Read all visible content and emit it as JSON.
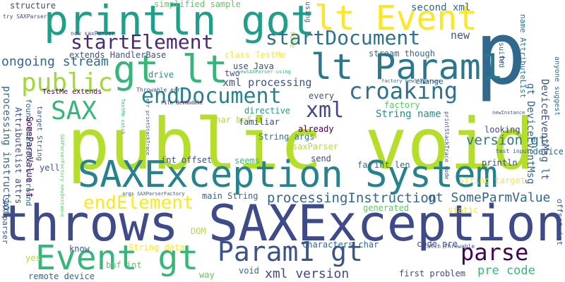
{
  "words": [
    {
      "text": "public void",
      "color": "#b5de2b"
    },
    {
      "text": "throws SAXException",
      "color": "#3e4a89"
    },
    {
      "text": "SAXException System",
      "color": "#26828e"
    },
    {
      "text": "p",
      "color": "#31688e"
    },
    {
      "text": "println got",
      "color": "#1f9e89"
    },
    {
      "text": "lt Event",
      "color": "#fde725"
    },
    {
      "text": "gt lt",
      "color": "#35b779"
    },
    {
      "text": "lt Param1",
      "color": "#2a788e"
    },
    {
      "text": "Event gt",
      "color": "#35b779"
    },
    {
      "text": "Param1 gt",
      "color": "#3b528b"
    },
    {
      "text": "startElement",
      "color": "#482878"
    },
    {
      "text": "startDocument",
      "color": "#2c728e"
    },
    {
      "text": "endDocument",
      "color": "#26828e"
    },
    {
      "text": "croaking",
      "color": "#2c728e"
    },
    {
      "text": "public",
      "color": "#a0da39"
    },
    {
      "text": "endElement",
      "color": "#fde725"
    },
    {
      "text": "parse",
      "color": "#440154"
    },
    {
      "text": "SAX",
      "color": "#35b779"
    },
    {
      "text": "xml",
      "color": "#3e4a89"
    },
    {
      "text": "processingInstruction",
      "color": "#31688e"
    },
    {
      "text": "ongoing stream",
      "color": "#31688e"
    },
    {
      "text": "xml version",
      "color": "#3e4a89"
    },
    {
      "text": "gt SomeParmValue",
      "color": "#31688e"
    },
    {
      "text": "String name",
      "color": "#21918c"
    },
    {
      "text": "version gt",
      "color": "#2a788e"
    },
    {
      "text": "pre code",
      "color": "#35b779"
    },
    {
      "text": "new",
      "color": "#3b528b"
    },
    {
      "text": "xml processing",
      "color": "#3b528b"
    },
    {
      "text": "second xml",
      "color": "#31688e"
    },
    {
      "text": "structure",
      "color": "#414487"
    },
    {
      "text": "simplified sample",
      "color": "#5ec962"
    },
    {
      "text": "extends HandlerBase",
      "color": "#3b528b"
    },
    {
      "text": "class TestMe",
      "color": "#fde725"
    },
    {
      "text": "stream though",
      "color": "#31688e"
    },
    {
      "text": "use Java",
      "color": "#3e4a89"
    },
    {
      "text": "two",
      "color": "#3b528b"
    },
    {
      "text": "drive",
      "color": "#21918c"
    },
    {
      "text": "change",
      "color": "#31688e"
    },
    {
      "text": "every",
      "color": "#3b528b"
    },
    {
      "text": "factory",
      "color": "#5ec962"
    },
    {
      "text": "directive",
      "color": "#1f9e89"
    },
    {
      "text": "familiar",
      "color": "#3e4a89"
    },
    {
      "text": "already",
      "color": "#440154"
    },
    {
      "text": "String args",
      "color": "#2a788e"
    },
    {
      "text": "saxParser",
      "color": "#b5de2b"
    },
    {
      "text": "char buf",
      "color": "#b5de2b"
    },
    {
      "text": "int offset",
      "color": "#3b528b"
    },
    {
      "text": "seems",
      "color": "#35b779"
    },
    {
      "text": "send",
      "color": "#3e4a89"
    },
    {
      "text": "far",
      "color": "#2a788e"
    },
    {
      "text": "int len",
      "color": "#31688e"
    },
    {
      "text": "looking",
      "color": "#3e4a89"
    },
    {
      "text": "String target",
      "color": "#fde725"
    },
    {
      "text": "device",
      "color": "#31688e"
    },
    {
      "text": "println",
      "color": "#3b528b"
    },
    {
      "text": "main String",
      "color": "#31688e"
    },
    {
      "text": "generated",
      "color": "#5ec962"
    },
    {
      "text": "static",
      "color": "#fde725"
    },
    {
      "text": "DOM",
      "color": "#b5de2b"
    },
    {
      "text": "know",
      "color": "#3b528b"
    },
    {
      "text": "String data",
      "color": "#fde725"
    },
    {
      "text": "characters char",
      "color": "#31688e"
    },
    {
      "text": "code pre",
      "color": "#3e4a89"
    },
    {
      "text": "first problem",
      "color": "#3e4a89"
    },
    {
      "text": "void",
      "color": "#31688e"
    },
    {
      "text": "way",
      "color": "#5ec962"
    },
    {
      "text": "buf int",
      "color": "#5ec962"
    },
    {
      "text": "remote device",
      "color": "#31688e"
    },
    {
      "text": "yes",
      "color": "#b5de2b"
    },
    {
      "text": "yell",
      "color": "#3b528b"
    },
    {
      "text": "TestMe extends",
      "color": "#440154"
    },
    {
      "text": "Throwable err",
      "color": "#3b528b"
    },
    {
      "text": "now saxParser",
      "color": "#3e4a89"
    },
    {
      "text": "try SAXParser",
      "color": "#3e4a89"
    },
    {
      "text": "test input",
      "color": "#3b528b"
    },
    {
      "text": "catch Throwable",
      "color": "#3b528b"
    },
    {
      "text": "newInstance",
      "color": "#3b528b"
    },
    {
      "text": "newSAXParser using",
      "color": "#35b779"
    },
    {
      "text": "factory newSAXParser",
      "color": "#31688e"
    },
    {
      "text": "File devmodule",
      "color": "#440154"
    },
    {
      "text": "args SAXParserFactory",
      "color": "#3b528b"
    },
    {
      "text": "SomeParmValue lt",
      "color": "#440154"
    },
    {
      "text": "processing instruction",
      "color": "#31688e"
    },
    {
      "text": "Attributelist attrs",
      "color": "#3e4a89"
    },
    {
      "text": "found characters around",
      "color": "#31688e"
    },
    {
      "text": "target String",
      "color": "#3b528b"
    },
    {
      "text": "SAX parser",
      "color": "#3b528b"
    },
    {
      "text": "file",
      "color": "#b5de2b"
    },
    {
      "text": "using",
      "color": "#31688e"
    },
    {
      "text": "suited",
      "color": "#31688e"
    },
    {
      "text": "name AttributeList",
      "color": "#2a788e"
    },
    {
      "text": "hr",
      "color": "#3b528b"
    },
    {
      "text": "anyone suggest",
      "color": "#31688e"
    },
    {
      "text": "offset int",
      "color": "#3b528b"
    },
    {
      "text": "gt DeviceEventMsg",
      "color": "#31688e"
    },
    {
      "text": "DeviceEventMsg lt",
      "color": "#3b528b"
    },
    {
      "text": "printStackTrace code",
      "color": "#3b528b"
    },
    {
      "text": "err printStackTrace",
      "color": "#3b528b"
    },
    {
      "text": "TestMe catch",
      "color": "#35b779"
    },
    {
      "text": "SAXParserFactory newInstance",
      "color": "#5ec962"
    }
  ]
}
